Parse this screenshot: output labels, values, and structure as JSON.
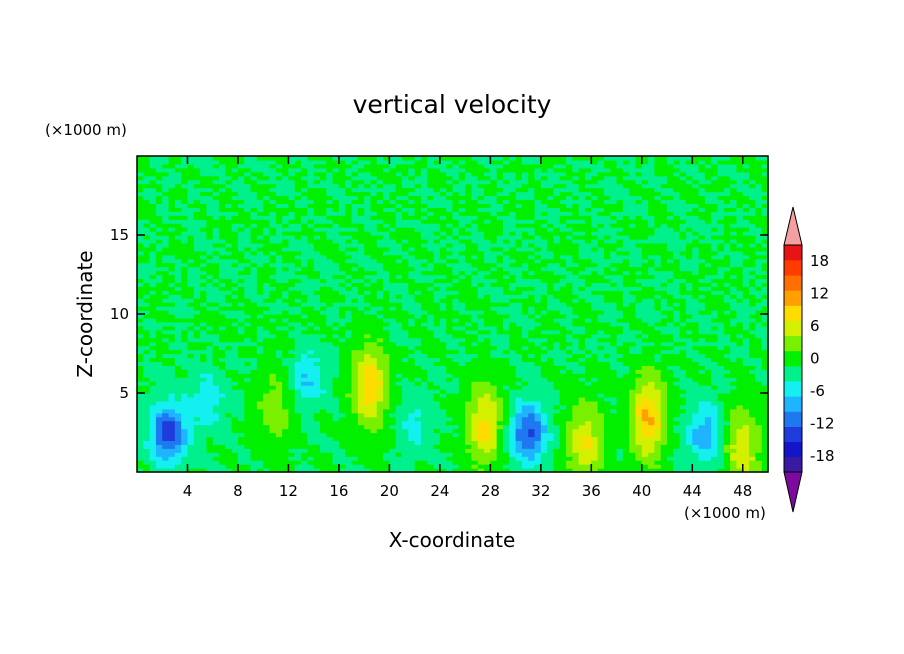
{
  "chart_data": {
    "type": "heatmap",
    "title": "vertical velocity",
    "xlabel": "X-coordinate",
    "ylabel": "Z-coordinate",
    "x_unit": "(×1000 m)",
    "y_unit": "(×1000 m)",
    "xlim": [
      0,
      50
    ],
    "ylim": [
      0,
      20
    ],
    "x_ticks": [
      4,
      8,
      12,
      16,
      20,
      24,
      28,
      32,
      36,
      40,
      44,
      48
    ],
    "y_ticks": [
      5,
      10,
      15
    ],
    "colorbar": {
      "labels": [
        18,
        12,
        6,
        0,
        -6,
        -12,
        -18
      ],
      "levels": [
        -21,
        -18,
        -15,
        -12,
        -9,
        -6,
        -3,
        0,
        3,
        6,
        9,
        12,
        15,
        18,
        21
      ],
      "colors": [
        "#7d0a9e",
        "#3a1aa0",
        "#1414c8",
        "#1e3cdc",
        "#1e78f0",
        "#1eb4ff",
        "#14f0f0",
        "#00f08c",
        "#00f000",
        "#78f000",
        "#d2f000",
        "#ffdc00",
        "#ffa000",
        "#ff6e00",
        "#ff3c00",
        "#e61414",
        "#f5a0a0"
      ],
      "extend": "both"
    },
    "features": [
      {
        "x": 2.5,
        "z": 2.5,
        "w": -14
      },
      {
        "x": 5.5,
        "z": 4.5,
        "w": -5
      },
      {
        "x": 11,
        "z": 4,
        "w": 5
      },
      {
        "x": 13.5,
        "z": 6,
        "w": -6
      },
      {
        "x": 18.5,
        "z": 5.5,
        "w": 11
      },
      {
        "x": 22,
        "z": 3,
        "w": -4
      },
      {
        "x": 27.5,
        "z": 3,
        "w": 10
      },
      {
        "x": 31,
        "z": 2.5,
        "w": -13
      },
      {
        "x": 35.5,
        "z": 1.8,
        "w": 9
      },
      {
        "x": 40.5,
        "z": 3.5,
        "w": 12
      },
      {
        "x": 45,
        "z": 2.5,
        "w": -8
      },
      {
        "x": 48,
        "z": 1.5,
        "w": 8
      }
    ]
  }
}
